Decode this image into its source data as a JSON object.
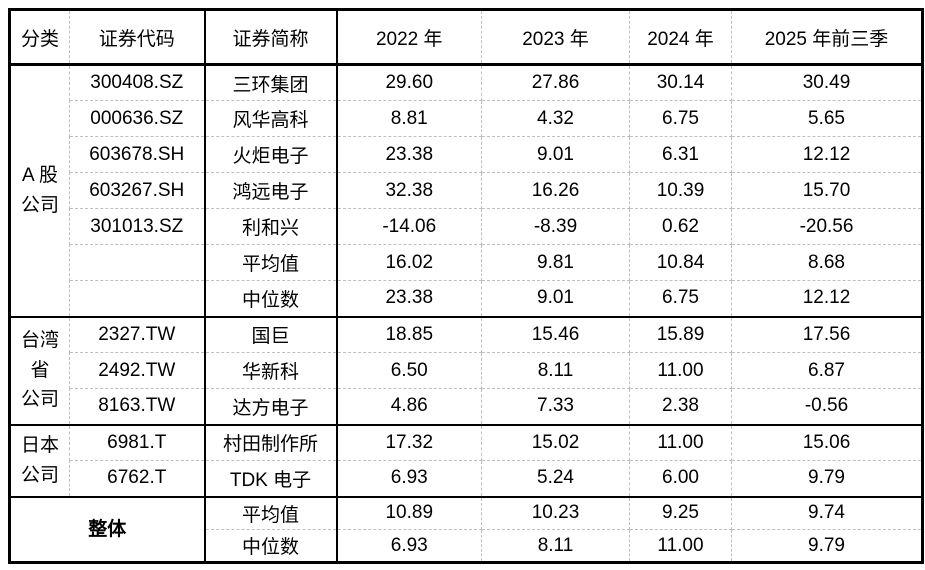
{
  "table": {
    "columns": [
      "分类",
      "证券代码",
      "证券简称",
      "2022 年",
      "2023 年",
      "2024 年",
      "2025 年前三季"
    ],
    "sections": [
      {
        "category_lines": [
          "A 股",
          "公司"
        ],
        "category_bold": false,
        "merge_code_column": false,
        "rows": [
          {
            "code": "300408.SZ",
            "name": "三环集团",
            "values": [
              "29.60",
              "27.86",
              "30.14",
              "30.49"
            ]
          },
          {
            "code": "000636.SZ",
            "name": "风华高科",
            "values": [
              "8.81",
              "4.32",
              "6.75",
              "5.65"
            ]
          },
          {
            "code": "603678.SH",
            "name": "火炬电子",
            "values": [
              "23.38",
              "9.01",
              "6.31",
              "12.12"
            ]
          },
          {
            "code": "603267.SH",
            "name": "鸿远电子",
            "values": [
              "32.38",
              "16.26",
              "10.39",
              "15.70"
            ]
          },
          {
            "code": "301013.SZ",
            "name": "利和兴",
            "values": [
              "-14.06",
              "-8.39",
              "0.62",
              "-20.56"
            ]
          },
          {
            "code": "",
            "name": "平均值",
            "values": [
              "16.02",
              "9.81",
              "10.84",
              "8.68"
            ]
          },
          {
            "code": "",
            "name": "中位数",
            "values": [
              "23.38",
              "9.01",
              "6.75",
              "12.12"
            ]
          }
        ]
      },
      {
        "category_lines": [
          "台湾",
          "省",
          "公司"
        ],
        "category_bold": false,
        "merge_code_column": false,
        "rows": [
          {
            "code": "2327.TW",
            "name": "国巨",
            "values": [
              "18.85",
              "15.46",
              "15.89",
              "17.56"
            ]
          },
          {
            "code": "2492.TW",
            "name": "华新科",
            "values": [
              "6.50",
              "8.11",
              "11.00",
              "6.87"
            ]
          },
          {
            "code": "8163.TW",
            "name": "达方电子",
            "values": [
              "4.86",
              "7.33",
              "2.38",
              "-0.56"
            ]
          }
        ]
      },
      {
        "category_lines": [
          "日本",
          "公司"
        ],
        "category_bold": false,
        "merge_code_column": false,
        "rows": [
          {
            "code": "6981.T",
            "name": "村田制作所",
            "values": [
              "17.32",
              "15.02",
              "11.00",
              "15.06"
            ]
          },
          {
            "code": "6762.T",
            "name": "TDK 电子",
            "values": [
              "6.93",
              "5.24",
              "6.00",
              "9.79"
            ]
          }
        ]
      },
      {
        "category_lines": [
          "整体"
        ],
        "category_bold": true,
        "merge_code_column": true,
        "rows": [
          {
            "code": null,
            "name": "平均值",
            "values": [
              "10.89",
              "10.23",
              "9.25",
              "9.74"
            ]
          },
          {
            "code": null,
            "name": "中位数",
            "values": [
              "6.93",
              "8.11",
              "11.00",
              "9.79"
            ]
          }
        ]
      }
    ]
  },
  "colors": {
    "text": "#000000",
    "thick_border": "#000000",
    "thin_border": "#bfbfbf",
    "background": "#ffffff"
  }
}
